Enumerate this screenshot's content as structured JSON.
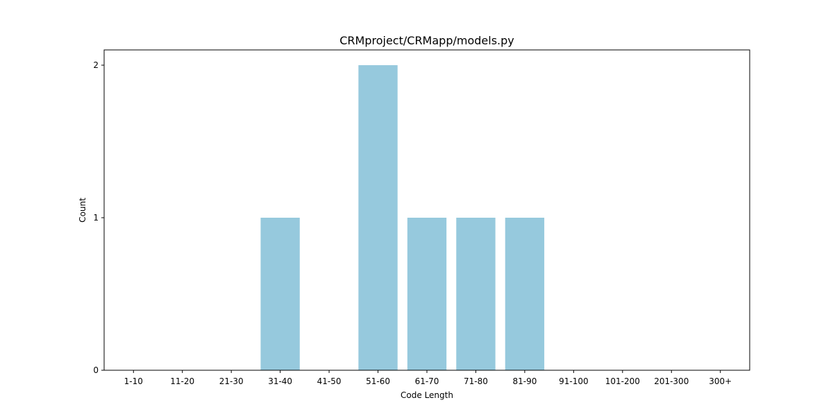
{
  "chart_data": {
    "type": "bar",
    "title": "CRMproject/CRMapp/models.py",
    "xlabel": "Code Length",
    "ylabel": "Count",
    "categories": [
      "1-10",
      "11-20",
      "21-30",
      "31-40",
      "41-50",
      "51-60",
      "61-70",
      "71-80",
      "81-90",
      "91-100",
      "101-200",
      "201-300",
      "300+"
    ],
    "values": [
      0,
      0,
      0,
      1,
      0,
      2,
      1,
      1,
      1,
      0,
      0,
      0,
      0
    ],
    "yticks": [
      0,
      1,
      2
    ],
    "ylim": [
      0,
      2.1
    ],
    "bar_color": "#96c9dd",
    "grid": false,
    "legend": "none"
  }
}
